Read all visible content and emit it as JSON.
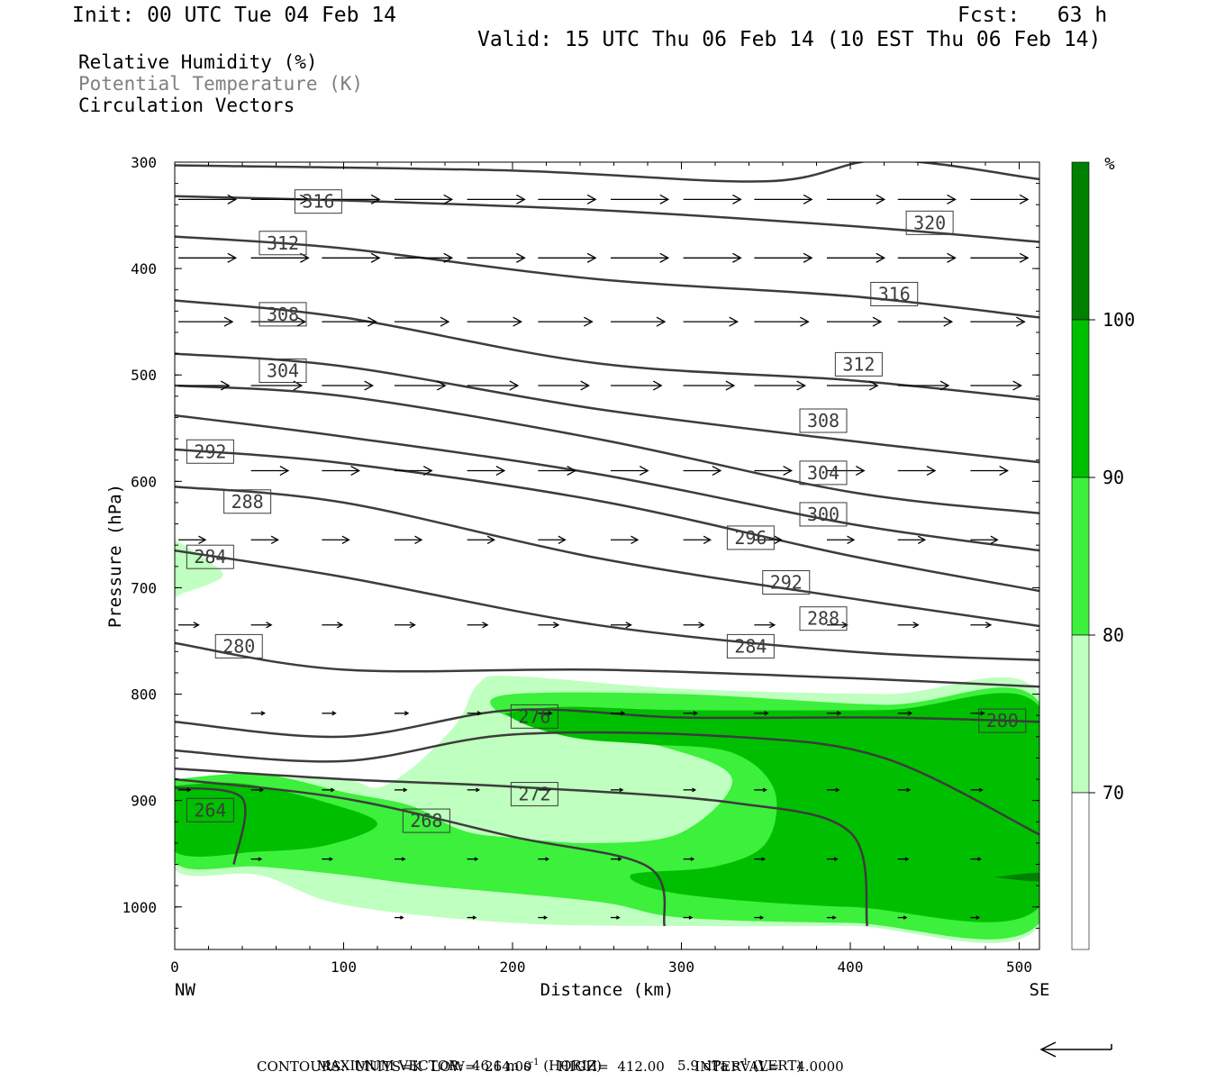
{
  "header": {
    "init": "Init: 00 UTC Tue 04 Feb 14",
    "fcst": "Fcst:   63 h",
    "valid": "Valid: 15 UTC Thu 06 Feb 14 (10 EST Thu 06 Feb 14)"
  },
  "legend_lines": [
    "Relative Humidity (%)",
    "Potential Temperature (K)",
    "Circulation Vectors"
  ],
  "colors": {
    "rh_70_80": "#bfffbf",
    "rh_80_90": "#3cf03c",
    "rh_90_100": "#00bf00",
    "rh_100_plus": "#007f00",
    "theta_lines": "#3c3c3c",
    "legend_gray": "#7f7f7f"
  },
  "footer": {
    "max_vector": "MAXIMUM VECTOR:  46.1 m s",
    "horiz_unit": " (HORIZ)",
    "vert": "5.9 dPa s",
    "vert_unit": " (VERT)",
    "sup": "-1",
    "contours": "CONTOURS:  UNITS=K  LOW=  264.00      HIGH=  412.00       INTERVAL=    4.0000"
  },
  "chart_data": {
    "type": "contour",
    "xlabel": "Distance (km)",
    "ylabel": "Pressure (hPa)",
    "xlim": [
      0,
      512
    ],
    "ylim": [
      1040,
      300
    ],
    "x_ticks": [
      0,
      100,
      200,
      300,
      400,
      500
    ],
    "y_ticks": [
      300,
      400,
      500,
      600,
      700,
      800,
      900,
      1000
    ],
    "x_end_labels": {
      "left": "NW",
      "right": "SE"
    },
    "colorbar": {
      "unit": "%",
      "levels": [
        "70",
        "80",
        "90",
        "100"
      ]
    },
    "theta_contours": [
      {
        "level": 320,
        "points": [
          [
            0,
            303
          ],
          [
            200,
            308
          ],
          [
            350,
            318
          ],
          [
            420,
            298
          ],
          [
            512,
            316
          ]
        ]
      },
      {
        "level": 316,
        "points": [
          [
            0,
            332
          ],
          [
            100,
            336
          ],
          [
            250,
            345
          ],
          [
            400,
            360
          ],
          [
            512,
            375
          ]
        ]
      },
      {
        "level": 312,
        "points": [
          [
            0,
            370
          ],
          [
            100,
            381
          ],
          [
            250,
            410
          ],
          [
            400,
            426
          ],
          [
            512,
            446
          ]
        ]
      },
      {
        "level": 308,
        "points": [
          [
            0,
            430
          ],
          [
            100,
            446
          ],
          [
            250,
            489
          ],
          [
            400,
            505
          ],
          [
            512,
            523
          ]
        ]
      },
      {
        "level": 304,
        "points": [
          [
            0,
            480
          ],
          [
            100,
            492
          ],
          [
            250,
            532
          ],
          [
            400,
            562
          ],
          [
            512,
            582
          ]
        ]
      },
      {
        "level": 300,
        "points": [
          [
            0,
            510
          ],
          [
            100,
            520
          ],
          [
            250,
            560
          ],
          [
            400,
            610
          ],
          [
            512,
            630
          ]
        ]
      },
      {
        "level": 296,
        "points": [
          [
            0,
            538
          ],
          [
            100,
            558
          ],
          [
            250,
            593
          ],
          [
            400,
            640
          ],
          [
            512,
            665
          ]
        ]
      },
      {
        "level": 292,
        "points": [
          [
            0,
            570
          ],
          [
            100,
            583
          ],
          [
            250,
            618
          ],
          [
            400,
            670
          ],
          [
            512,
            703
          ]
        ]
      },
      {
        "level": 288,
        "points": [
          [
            0,
            605
          ],
          [
            100,
            620
          ],
          [
            250,
            672
          ],
          [
            400,
            710
          ],
          [
            512,
            736
          ]
        ]
      },
      {
        "level": 284,
        "points": [
          [
            0,
            665
          ],
          [
            100,
            690
          ],
          [
            250,
            735
          ],
          [
            400,
            760
          ],
          [
            512,
            768
          ]
        ]
      },
      {
        "level": 280,
        "points": [
          [
            0,
            752
          ],
          [
            100,
            777
          ],
          [
            250,
            777
          ],
          [
            400,
            785
          ],
          [
            512,
            793
          ]
        ]
      },
      {
        "level": 280,
        "points": [
          [
            0,
            826
          ],
          [
            100,
            840
          ],
          [
            200,
            815
          ],
          [
            300,
            822
          ],
          [
            420,
            822
          ],
          [
            512,
            826
          ]
        ]
      },
      {
        "level": 276,
        "points": [
          [
            0,
            853
          ],
          [
            100,
            863
          ],
          [
            200,
            838
          ],
          [
            330,
            840
          ],
          [
            420,
            860
          ],
          [
            512,
            932
          ]
        ]
      },
      {
        "level": 272,
        "points": [
          [
            0,
            870
          ],
          [
            100,
            880
          ],
          [
            200,
            887
          ],
          [
            330,
            902
          ],
          [
            400,
            930
          ],
          [
            410,
            1018
          ]
        ]
      },
      {
        "level": 268,
        "points": [
          [
            0,
            880
          ],
          [
            100,
            898
          ],
          [
            200,
            934
          ],
          [
            280,
            962
          ],
          [
            290,
            1018
          ]
        ]
      },
      {
        "level": 264,
        "points": [
          [
            0,
            888
          ],
          [
            40,
            898
          ],
          [
            35,
            960
          ]
        ]
      }
    ],
    "theta_labels": [
      {
        "text": "316",
        "x": 85,
        "p": 337
      },
      {
        "text": "312",
        "x": 64,
        "p": 376
      },
      {
        "text": "308",
        "x": 64,
        "p": 443
      },
      {
        "text": "304",
        "x": 64,
        "p": 496
      },
      {
        "text": "292",
        "x": 21,
        "p": 572
      },
      {
        "text": "288",
        "x": 43,
        "p": 619
      },
      {
        "text": "284",
        "x": 21,
        "p": 671
      },
      {
        "text": "280",
        "x": 38,
        "p": 755
      },
      {
        "text": "320",
        "x": 447,
        "p": 357
      },
      {
        "text": "316",
        "x": 426,
        "p": 424
      },
      {
        "text": "312",
        "x": 405,
        "p": 490
      },
      {
        "text": "308",
        "x": 384,
        "p": 543
      },
      {
        "text": "304",
        "x": 384,
        "p": 592
      },
      {
        "text": "300",
        "x": 384,
        "p": 631
      },
      {
        "text": "296",
        "x": 341,
        "p": 653
      },
      {
        "text": "292",
        "x": 362,
        "p": 695
      },
      {
        "text": "288",
        "x": 384,
        "p": 729
      },
      {
        "text": "284",
        "x": 341,
        "p": 755
      },
      {
        "text": "276",
        "x": 213,
        "p": 821
      },
      {
        "text": "280",
        "x": 490,
        "p": 825
      },
      {
        "text": "272",
        "x": 213,
        "p": 894
      },
      {
        "text": "268",
        "x": 149,
        "p": 919
      },
      {
        "text": "264",
        "x": 21,
        "p": 909
      }
    ],
    "vector_rows": [
      {
        "p": 335,
        "x": [
          0,
          43,
          85,
          128,
          171,
          213,
          256,
          299,
          341,
          384,
          426,
          469
        ],
        "len_km": 34
      },
      {
        "p": 390,
        "x": [
          0,
          43,
          85,
          128,
          171,
          213,
          256,
          299,
          341,
          384,
          426,
          469
        ],
        "len_km": 34
      },
      {
        "p": 450,
        "x": [
          0,
          43,
          85,
          128,
          171,
          213,
          256,
          299,
          341,
          384,
          426,
          469
        ],
        "len_km": 32
      },
      {
        "p": 510,
        "x": [
          0,
          43,
          85,
          128,
          171,
          213,
          256,
          299,
          341,
          384,
          426,
          469
        ],
        "len_km": 30
      },
      {
        "p": 590,
        "x": [
          43,
          85,
          128,
          171,
          213,
          256,
          299,
          341,
          384,
          426,
          469
        ],
        "len_km": 22
      },
      {
        "p": 655,
        "x": [
          0,
          43,
          85,
          128,
          171,
          213,
          256,
          299,
          341,
          384,
          426,
          469
        ],
        "len_km": 16
      },
      {
        "p": 735,
        "x": [
          0,
          43,
          85,
          128,
          171,
          213,
          256,
          299,
          341,
          384,
          426,
          469
        ],
        "len_km": 12
      },
      {
        "p": 818,
        "x": [
          43,
          85,
          128,
          171,
          213,
          256,
          299,
          341,
          384,
          426,
          469
        ],
        "len_km": 8
      },
      {
        "p": 890,
        "x": [
          0,
          43,
          85,
          128,
          171,
          213,
          256,
          299,
          341,
          384,
          426,
          469
        ],
        "len_km": 7
      },
      {
        "p": 955,
        "x": [
          43,
          85,
          128,
          171,
          213,
          256,
          299,
          341,
          384,
          426,
          469
        ],
        "len_km": 6
      },
      {
        "p": 1010,
        "x": [
          128,
          171,
          213,
          256,
          299,
          341,
          384,
          426,
          469
        ],
        "len_km": 5
      }
    ],
    "rh_regions": [
      {
        "level": 70,
        "points": [
          [
            0,
            890
          ],
          [
            50,
            880
          ],
          [
            100,
            880
          ],
          [
            120,
            888
          ],
          [
            140,
            870
          ],
          [
            160,
            840
          ],
          [
            170,
            820
          ],
          [
            180,
            790
          ],
          [
            200,
            783
          ],
          [
            300,
            795
          ],
          [
            420,
            800
          ],
          [
            512,
            800
          ],
          [
            512,
            1018
          ],
          [
            400,
            1018
          ],
          [
            300,
            1018
          ],
          [
            200,
            1015
          ],
          [
            100,
            998
          ],
          [
            50,
            970
          ],
          [
            0,
            965
          ]
        ]
      },
      {
        "level": 70,
        "points": [
          [
            0,
            655
          ],
          [
            20,
            675
          ],
          [
            28,
            690
          ],
          [
            5,
            705
          ],
          [
            0,
            705
          ]
        ]
      },
      {
        "level": 80,
        "points": [
          [
            0,
            880
          ],
          [
            50,
            875
          ],
          [
            100,
            892
          ],
          [
            140,
            905
          ],
          [
            170,
            928
          ],
          [
            200,
            935
          ],
          [
            250,
            940
          ],
          [
            300,
            930
          ],
          [
            330,
            880
          ],
          [
            290,
            850
          ],
          [
            220,
            830
          ],
          [
            190,
            815
          ],
          [
            200,
            800
          ],
          [
            300,
            800
          ],
          [
            420,
            810
          ],
          [
            512,
            808
          ],
          [
            512,
            1015
          ],
          [
            400,
            1015
          ],
          [
            300,
            1010
          ],
          [
            250,
            995
          ],
          [
            150,
            980
          ],
          [
            100,
            970
          ],
          [
            50,
            962
          ],
          [
            0,
            958
          ]
        ]
      },
      {
        "level": 90,
        "points": [
          [
            0,
            886
          ],
          [
            40,
            884
          ],
          [
            90,
            902
          ],
          [
            120,
            922
          ],
          [
            90,
            942
          ],
          [
            50,
            948
          ],
          [
            0,
            948
          ]
        ]
      },
      {
        "level": 90,
        "points": [
          [
            195,
            818
          ],
          [
            230,
            812
          ],
          [
            300,
            815
          ],
          [
            420,
            815
          ],
          [
            512,
            812
          ],
          [
            512,
            1000
          ],
          [
            400,
            1000
          ],
          [
            300,
            988
          ],
          [
            270,
            970
          ],
          [
            320,
            962
          ],
          [
            350,
            940
          ],
          [
            355,
            890
          ],
          [
            330,
            855
          ],
          [
            280,
            847
          ],
          [
            240,
            842
          ],
          [
            210,
            830
          ]
        ]
      },
      {
        "level": 100,
        "points": [
          [
            485,
            972
          ],
          [
            512,
            968
          ],
          [
            512,
            976
          ]
        ]
      }
    ],
    "max_vector_arrow": "left"
  },
  "labels": {
    "colorbar_unit": "%"
  }
}
